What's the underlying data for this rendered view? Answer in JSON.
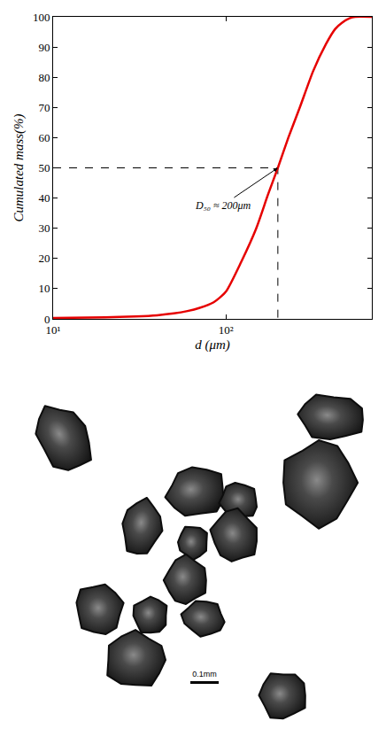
{
  "chart_data": {
    "type": "line",
    "x_label": "d (μm)",
    "y_label": "Cumulated mass(%)",
    "log": "x",
    "grid": false,
    "xlim": [
      10,
      700
    ],
    "ylim": [
      0,
      100
    ],
    "xticks": [
      {
        "value": 10,
        "label": "10¹"
      },
      {
        "value": 100,
        "label": "10²"
      }
    ],
    "yticks": [
      0,
      10,
      20,
      30,
      40,
      50,
      60,
      70,
      80,
      90,
      100
    ],
    "x": [
      10,
      20,
      30,
      40,
      50,
      60,
      70,
      85,
      100,
      123,
      150,
      175,
      200,
      230,
      268,
      320,
      380,
      430,
      470,
      520,
      560,
      700
    ],
    "values": [
      0.3,
      0.5,
      0.8,
      1.2,
      1.8,
      2.6,
      3.6,
      5.5,
      9,
      19,
      30,
      41,
      50,
      60,
      70,
      82,
      91,
      96,
      98,
      99.5,
      100,
      100
    ],
    "color": "#e60000",
    "line_style": "solid",
    "reference_lines": {
      "x": 200,
      "y": 50,
      "line_style": "dashed",
      "color": "#000000"
    },
    "annotation": {
      "text": "D₅₀ ≈ 200μm",
      "x": 200,
      "y": 50
    }
  },
  "image": {
    "scale_bar": "0.1mm"
  }
}
